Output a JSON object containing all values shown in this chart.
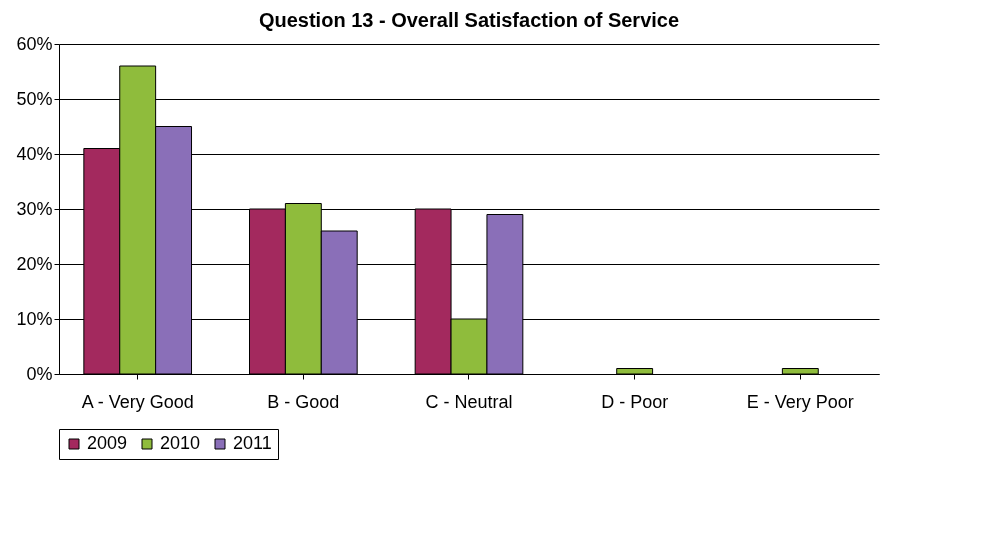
{
  "chart_data": {
    "type": "bar",
    "title": "Question 13 - Overall Satisfaction of Service",
    "categories": [
      "A - Very Good",
      "B - Good",
      "C - Neutral",
      "D - Poor",
      "E - Very Poor"
    ],
    "series": [
      {
        "name": "2009",
        "color": "#a3295e",
        "values": [
          41,
          30,
          30,
          0,
          0
        ]
      },
      {
        "name": "2010",
        "color": "#8fbc3c",
        "values": [
          56,
          31,
          10,
          1,
          1
        ]
      },
      {
        "name": "2011",
        "color": "#8a6fb8",
        "values": [
          45,
          26,
          29,
          0,
          0
        ]
      }
    ],
    "ylim": [
      0,
      60
    ],
    "yticks": [
      {
        "value": 0,
        "label": "0%"
      },
      {
        "value": 10,
        "label": "10%"
      },
      {
        "value": 20,
        "label": "20%"
      },
      {
        "value": 30,
        "label": "30%"
      },
      {
        "value": 40,
        "label": "40%"
      },
      {
        "value": 50,
        "label": "50%"
      },
      {
        "value": 60,
        "label": "60%"
      }
    ],
    "grid": "y",
    "legend": "bottom"
  }
}
